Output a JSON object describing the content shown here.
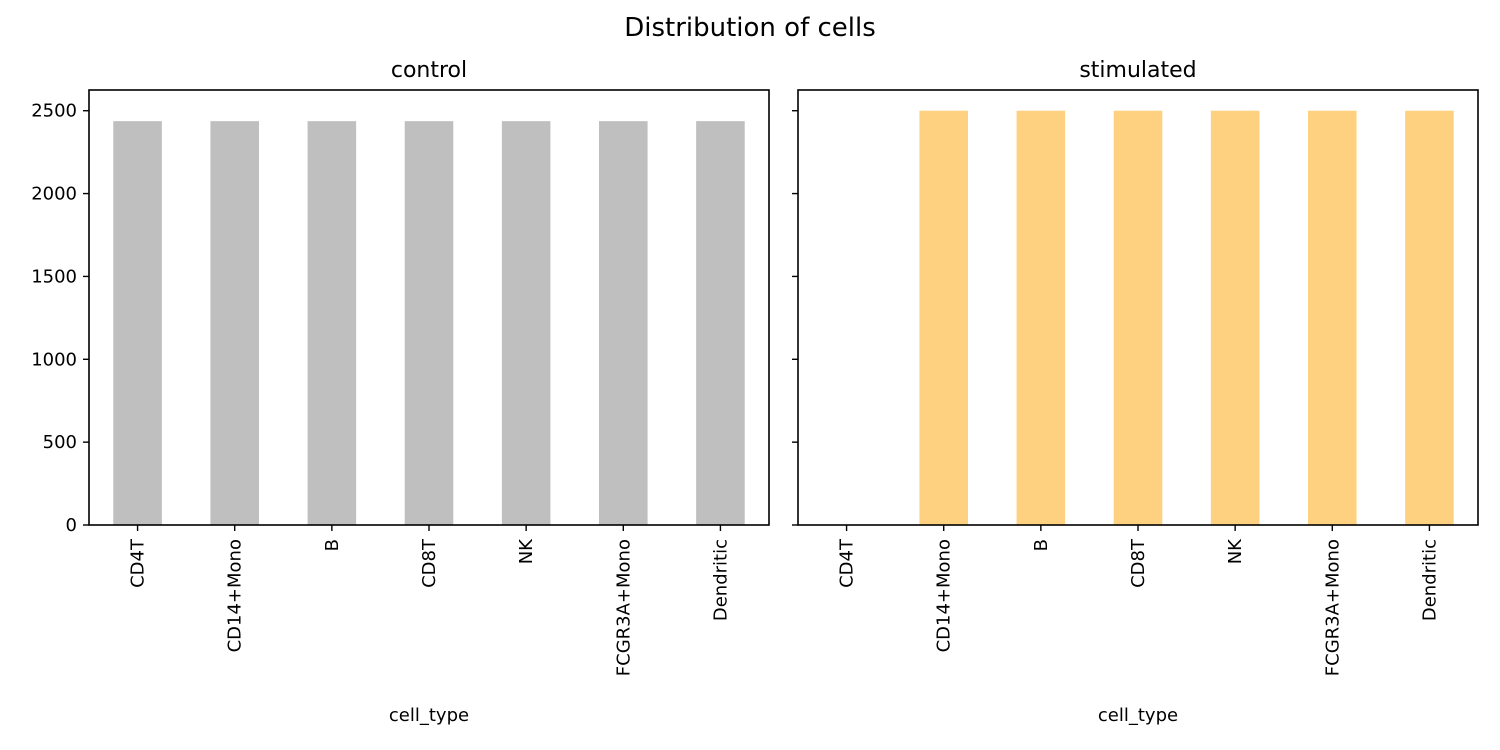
{
  "chart_data": [
    {
      "type": "bar",
      "title": "control",
      "xlabel": "cell_type",
      "ylabel": "",
      "categories": [
        "CD4T",
        "CD14+Mono",
        "B",
        "CD8T",
        "NK",
        "FCGR3A+Mono",
        "Dendritic"
      ],
      "values": [
        2437,
        2437,
        2437,
        2437,
        2437,
        2437,
        2437
      ],
      "ylim": [
        0,
        2625
      ],
      "yticks": [
        0,
        500,
        1000,
        1500,
        2000,
        2500
      ],
      "color": "#bfbfbf",
      "grid": false
    },
    {
      "type": "bar",
      "title": "stimulated",
      "xlabel": "cell_type",
      "ylabel": "",
      "categories": [
        "CD4T",
        "CD14+Mono",
        "B",
        "CD8T",
        "NK",
        "FCGR3A+Mono",
        "Dendritic"
      ],
      "values": [
        0,
        2500,
        2500,
        2500,
        2500,
        2500,
        2500
      ],
      "ylim": [
        0,
        2625
      ],
      "yticks": [
        0,
        500,
        1000,
        1500,
        2000,
        2500
      ],
      "ytick_labels_shown": false,
      "color": "#fed180",
      "grid": false
    }
  ],
  "figure": {
    "suptitle": "Distribution of cells"
  }
}
